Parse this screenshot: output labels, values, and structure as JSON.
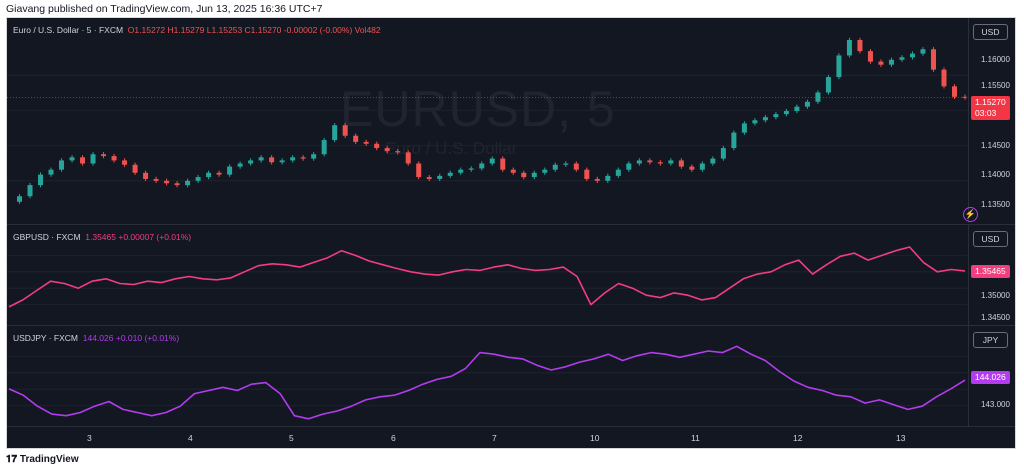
{
  "header": {
    "published": "Giavang published on TradingView.com, Jun 13, 2025 16:36 UTC+7"
  },
  "panes": [
    {
      "legend_name": "Euro / U.S. Dollar · 5 · FXCM",
      "ohlc": "O1.15272  H1.15279  L1.15253  C1.15270  -0.00002 (-0.00%)  Vol482",
      "currency": "USD",
      "ticks": [
        "1.16000",
        "1.15500",
        "1.15000",
        "1.14500",
        "1.14000",
        "1.13500"
      ],
      "last_price": "1.15270",
      "countdown": "03:03",
      "watermark": "EURUSD, 5",
      "watermark_sub": "Euro / U.S. Dollar",
      "colors": {
        "up": "#26a69a",
        "down": "#ef5350",
        "tag": "#f23645"
      }
    },
    {
      "legend_name": "GBPUSD · FXCM",
      "change": "1.35465  +0.00007 (+0.01%)",
      "currency": "USD",
      "ticks": [
        "1.35000",
        "1.34500"
      ],
      "last_price": "1.35465",
      "color": "#f23d7e"
    },
    {
      "legend_name": "USDJPY · FXCM",
      "change": "144.026  +0.010 (+0.01%)",
      "currency": "JPY",
      "ticks": [
        "143.000"
      ],
      "last_price": "144.026",
      "color": "#b33cf0"
    }
  ],
  "xaxis": {
    "labels": [
      "3",
      "4",
      "5",
      "6",
      "7",
      "10",
      "11",
      "12",
      "13"
    ]
  },
  "footer": {
    "brand": "TradingView",
    "brand_icon": "tradingview-logo-icon"
  },
  "chart_data": [
    {
      "type": "line",
      "title": "EURUSD, 5",
      "series": [
        {
          "name": "EURUSD",
          "values": [
            1.1358,
            1.1367,
            1.1385,
            1.1402,
            1.141,
            1.1425,
            1.143,
            1.142,
            1.1435,
            1.1432,
            1.1425,
            1.1418,
            1.1405,
            1.1395,
            1.1392,
            1.1388,
            1.1385,
            1.1392,
            1.1398,
            1.1405,
            1.1402,
            1.1415,
            1.142,
            1.1425,
            1.143,
            1.1422,
            1.1425,
            1.143,
            1.1428,
            1.1435,
            1.1458,
            1.1482,
            1.1465,
            1.1455,
            1.1452,
            1.1445,
            1.144,
            1.1438,
            1.142,
            1.1398,
            1.1395,
            1.14,
            1.1405,
            1.141,
            1.1412,
            1.142,
            1.1428,
            1.141,
            1.1405,
            1.1398,
            1.1405,
            1.141,
            1.1418,
            1.142,
            1.141,
            1.1395,
            1.1392,
            1.14,
            1.141,
            1.142,
            1.1425,
            1.1422,
            1.142,
            1.1425,
            1.1415,
            1.141,
            1.142,
            1.1428,
            1.1445,
            1.147,
            1.1485,
            1.149,
            1.1495,
            1.15,
            1.1505,
            1.1512,
            1.152,
            1.1535,
            1.156,
            1.1595,
            1.162,
            1.1602,
            1.1585,
            1.158,
            1.1588,
            1.1592,
            1.1598,
            1.1605,
            1.1572,
            1.1545,
            1.1528,
            1.1527
          ]
        }
      ],
      "ylim": [
        1.1335,
        1.162
      ]
    },
    {
      "type": "line",
      "title": "GBPUSD",
      "series": [
        {
          "name": "GBPUSD",
          "values": [
            1.347,
            1.3485,
            1.3505,
            1.3525,
            1.352,
            1.351,
            1.3525,
            1.353,
            1.352,
            1.3518,
            1.3525,
            1.3522,
            1.353,
            1.3535,
            1.353,
            1.3528,
            1.3532,
            1.3545,
            1.3558,
            1.3562,
            1.356,
            1.3555,
            1.3565,
            1.3575,
            1.359,
            1.358,
            1.3568,
            1.356,
            1.3552,
            1.3545,
            1.354,
            1.3538,
            1.3545,
            1.355,
            1.3548,
            1.3555,
            1.356,
            1.3552,
            1.3548,
            1.355,
            1.3555,
            1.3535,
            1.3475,
            1.35,
            1.352,
            1.351,
            1.3495,
            1.349,
            1.35,
            1.3495,
            1.3485,
            1.349,
            1.351,
            1.353,
            1.354,
            1.3545,
            1.356,
            1.357,
            1.354,
            1.356,
            1.3578,
            1.3585,
            1.357,
            1.358,
            1.359,
            1.3598,
            1.3565,
            1.3545,
            1.355,
            1.3547
          ]
        }
      ],
      "ylim": [
        1.344,
        1.3615
      ]
    },
    {
      "type": "line",
      "title": "USDJPY",
      "series": [
        {
          "name": "USDJPY",
          "values": [
            143.75,
            143.55,
            143.2,
            142.95,
            142.9,
            143.0,
            143.2,
            143.35,
            143.1,
            143.0,
            142.9,
            143.0,
            143.2,
            143.6,
            143.7,
            143.8,
            143.7,
            143.9,
            143.95,
            143.6,
            142.9,
            142.8,
            142.95,
            143.05,
            143.2,
            143.4,
            143.5,
            143.55,
            143.7,
            143.9,
            144.05,
            144.15,
            144.4,
            144.9,
            144.85,
            144.75,
            144.7,
            144.5,
            144.35,
            144.45,
            144.6,
            144.7,
            144.85,
            144.65,
            144.8,
            144.9,
            144.85,
            144.75,
            144.85,
            144.95,
            144.9,
            145.1,
            144.85,
            144.65,
            144.3,
            144.0,
            143.8,
            143.7,
            143.55,
            143.5,
            143.3,
            143.4,
            143.25,
            143.1,
            143.2,
            143.5,
            143.75,
            144.03
          ]
        }
      ],
      "ylim": [
        142.7,
        145.3
      ]
    }
  ]
}
